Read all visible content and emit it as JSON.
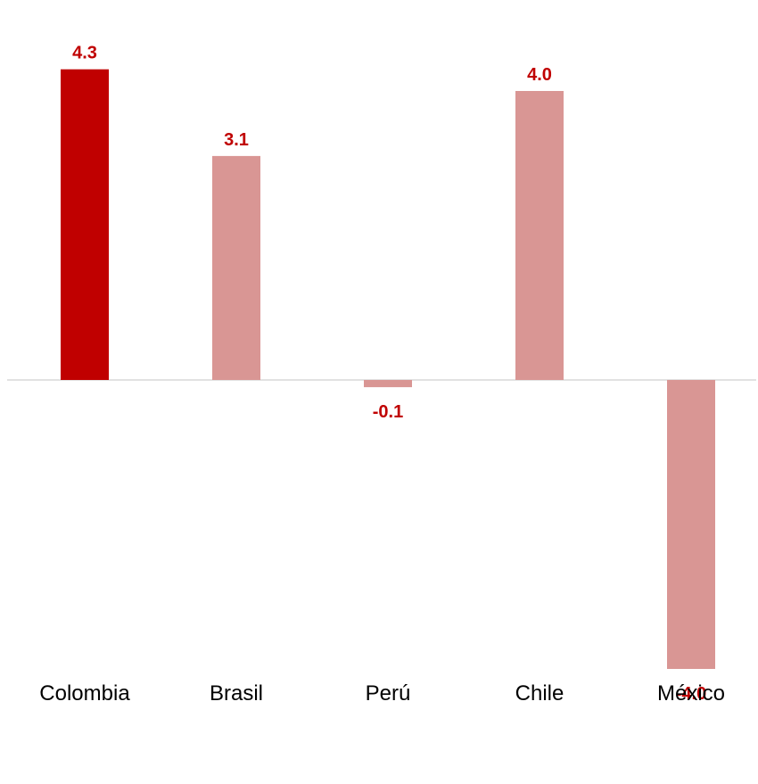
{
  "chart_data": {
    "type": "bar",
    "categories": [
      "Colombia",
      "Brasil",
      "Perú",
      "Chile",
      "México"
    ],
    "values": [
      4.3,
      3.1,
      -0.1,
      4.0,
      -4.0
    ],
    "data_labels": [
      "4.3",
      "3.1",
      "-0.1",
      "4.0",
      "-4.0"
    ],
    "highlight_index": 0,
    "title": "",
    "xlabel": "",
    "ylabel": "",
    "ylim": [
      -4.0,
      4.3
    ],
    "grid": false,
    "legend": "none"
  },
  "colors": {
    "highlight_bar": "#c00000",
    "bar": "#d99694",
    "label": "#c00000",
    "axis": "#d9d9d9"
  }
}
